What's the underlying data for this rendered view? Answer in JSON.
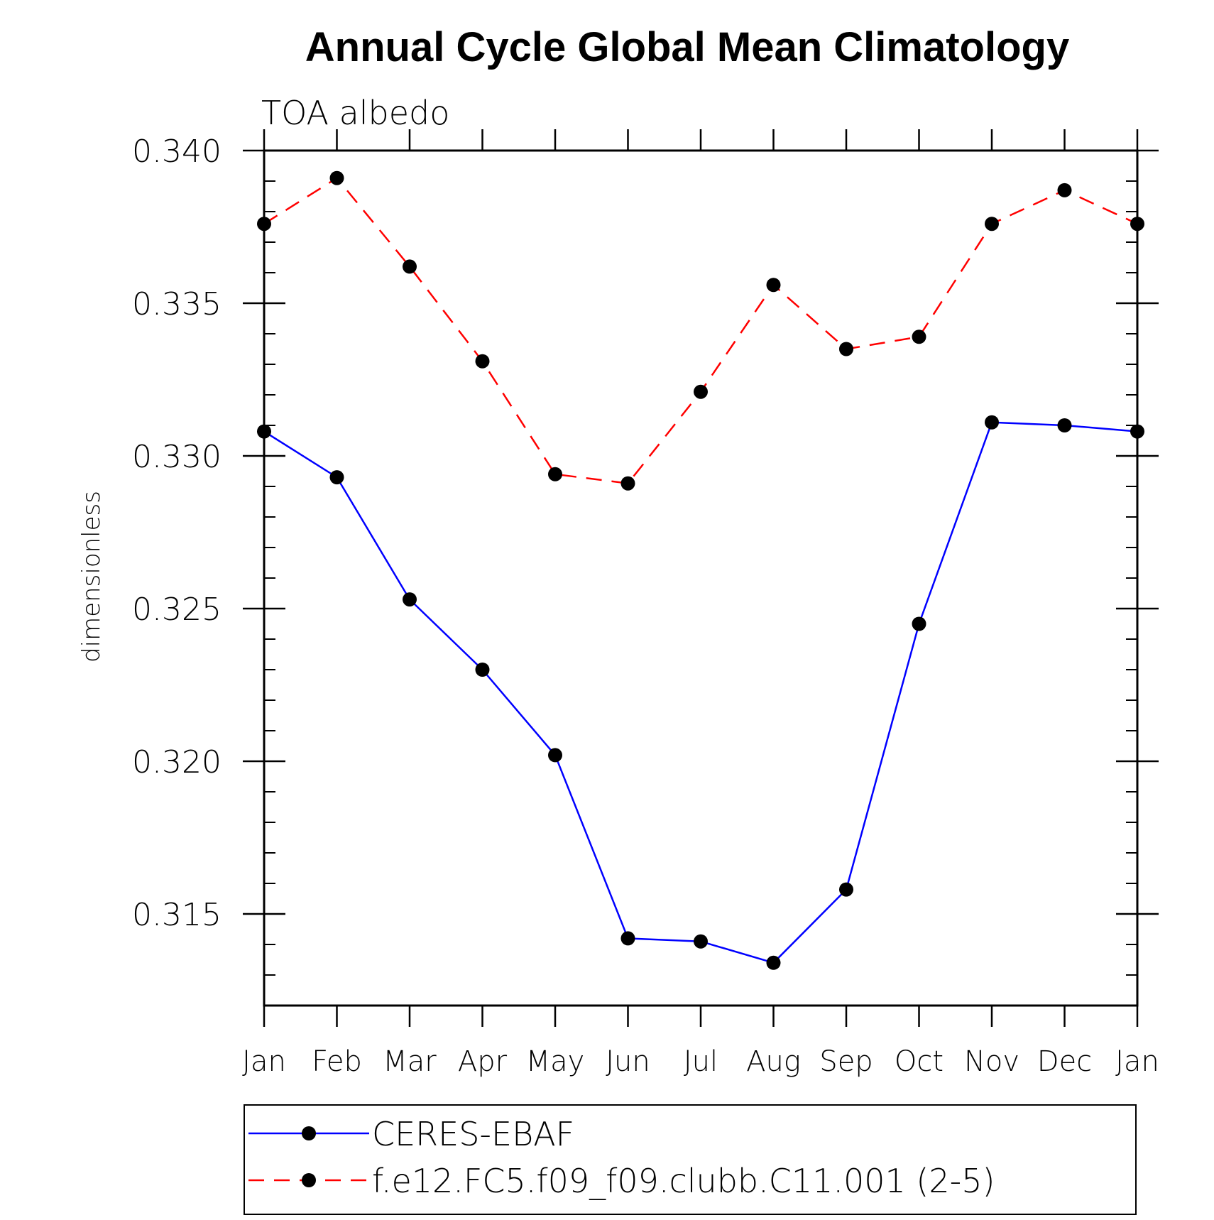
{
  "chart_data": {
    "type": "line",
    "title": "Annual Cycle Global Mean Climatology",
    "subtitle": "TOA albedo",
    "ylabel": "dimensionless",
    "xlabel": "",
    "categories": [
      "Jan",
      "Feb",
      "Mar",
      "Apr",
      "May",
      "Jun",
      "Jul",
      "Aug",
      "Sep",
      "Oct",
      "Nov",
      "Dec",
      "Jan"
    ],
    "ylim": [
      0.312,
      0.34
    ],
    "yticks": [
      0.315,
      0.32,
      0.325,
      0.33,
      0.335,
      0.34
    ],
    "ytick_labels": [
      "0.315",
      "0.320",
      "0.325",
      "0.330",
      "0.335",
      "0.340"
    ],
    "series": [
      {
        "name": "CERES-EBAF",
        "color": "#0000ff",
        "dash": "solid",
        "values": [
          0.3308,
          0.3293,
          0.3253,
          0.323,
          0.3202,
          0.3142,
          0.3141,
          0.3134,
          0.3158,
          0.3245,
          0.3311,
          0.331,
          0.3308
        ]
      },
      {
        "name": "f.e12.FC5.f09_f09.clubb.C11.001 (2-5)",
        "color": "#ff0000",
        "dash": "dashed",
        "values": [
          0.3376,
          0.3391,
          0.3362,
          0.3331,
          0.3294,
          0.3291,
          0.3321,
          0.3356,
          0.3335,
          0.3339,
          0.3376,
          0.3387,
          0.3376
        ]
      }
    ],
    "legend": "bottom",
    "marker_color": "#000000",
    "grid": false
  }
}
